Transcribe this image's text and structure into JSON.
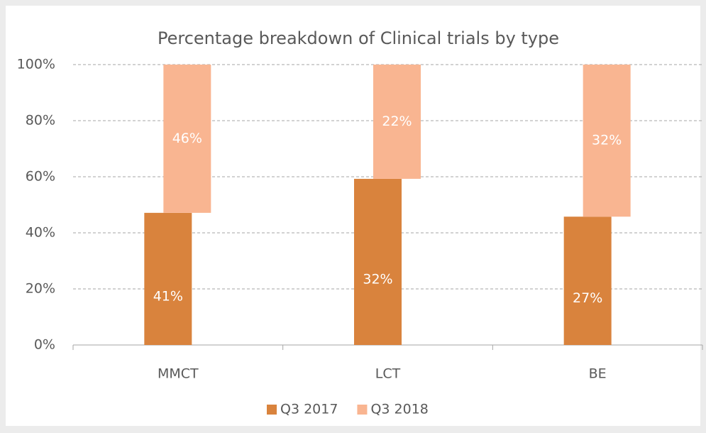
{
  "chart_data": {
    "type": "bar",
    "stacking": "percent",
    "title": "Percentage breakdown of Clinical trials by type",
    "categories": [
      "MMCT",
      "LCT",
      "BE"
    ],
    "series": [
      {
        "name": "Q3 2017",
        "color": "#d9833d",
        "values": [
          41,
          32,
          27
        ],
        "value_labels": [
          "41%",
          "32%",
          "27%"
        ]
      },
      {
        "name": "Q3 2018",
        "color": "#f9b591",
        "values": [
          46,
          22,
          32
        ],
        "value_labels": [
          "46%",
          "22%",
          "32%"
        ]
      }
    ],
    "ylim": [
      0,
      100
    ],
    "yticks": [
      {
        "value": 0,
        "label": "0%"
      },
      {
        "value": 20,
        "label": "20%"
      },
      {
        "value": 40,
        "label": "40%"
      },
      {
        "value": 60,
        "label": "60%"
      },
      {
        "value": 80,
        "label": "80%"
      },
      {
        "value": 100,
        "label": "100%"
      }
    ],
    "grid": true,
    "legend": "bottom"
  }
}
